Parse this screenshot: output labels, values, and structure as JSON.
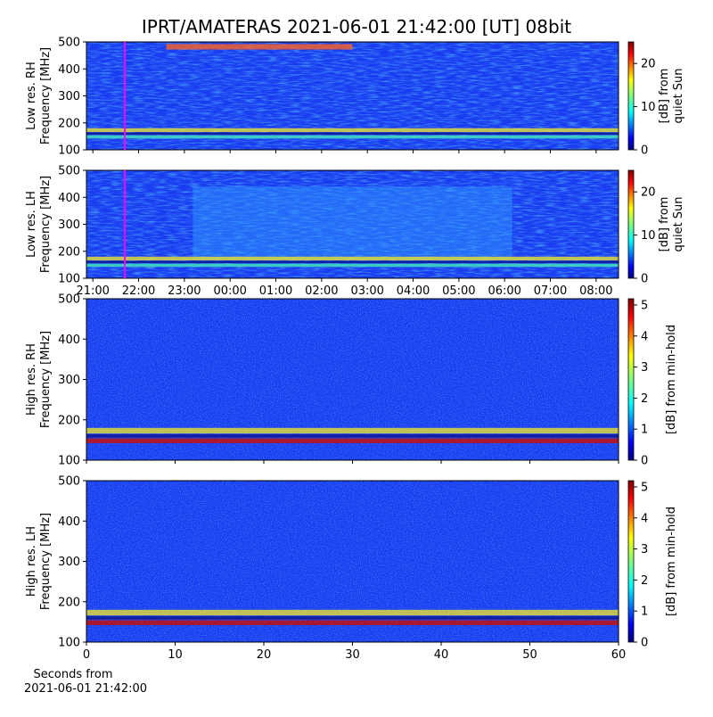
{
  "title": "IPRT/AMATERAS 2021-06-01 21:42:00 [UT]   08bit",
  "chart_data": [
    {
      "type": "heatmap",
      "ylabel": [
        "Low res. RH",
        "Frequency [MHz]"
      ],
      "ylim": [
        100,
        500
      ],
      "yticks": [
        100,
        200,
        300,
        400,
        500
      ],
      "sharex": 1,
      "marker_x": 21.7,
      "marker_color": "#ff00ff",
      "colormap": "jet",
      "colorbar": {
        "label": [
          "[dB] from",
          "quiet Sun"
        ],
        "lim": [
          0,
          25
        ],
        "ticks": [
          0,
          10,
          20
        ]
      }
    },
    {
      "type": "heatmap",
      "ylabel": [
        "Low res. LH",
        "Frequency [MHz]"
      ],
      "ylim": [
        100,
        500
      ],
      "yticks": [
        100,
        200,
        300,
        400,
        500
      ],
      "xlim": [
        20.86,
        32.49
      ],
      "xticks": [
        {
          "value": 21,
          "label": "21:00"
        },
        {
          "value": 22,
          "label": "22:00"
        },
        {
          "value": 23,
          "label": "23:00"
        },
        {
          "value": 24,
          "label": "00:00"
        },
        {
          "value": 25,
          "label": "01:00"
        },
        {
          "value": 26,
          "label": "02:00"
        },
        {
          "value": 27,
          "label": "03:00"
        },
        {
          "value": 28,
          "label": "04:00"
        },
        {
          "value": 29,
          "label": "05:00"
        },
        {
          "value": 30,
          "label": "06:00"
        },
        {
          "value": 31,
          "label": "07:00"
        },
        {
          "value": 32,
          "label": "08:00"
        }
      ],
      "marker_x": 21.7,
      "marker_color": "#ff00ff",
      "colormap": "jet",
      "colorbar": {
        "label": [
          "[dB] from",
          "quiet Sun"
        ],
        "lim": [
          0,
          25
        ],
        "ticks": [
          0,
          10,
          20
        ]
      }
    },
    {
      "type": "heatmap",
      "ylabel": [
        "High res. RH",
        "Frequency [MHz]"
      ],
      "ylim": [
        100,
        500
      ],
      "yticks": [
        100,
        200,
        300,
        400,
        500
      ],
      "sharex": 3,
      "colormap": "jet",
      "colorbar": {
        "label": [
          "[dB] from min-hold"
        ],
        "lim": [
          0,
          5.2
        ],
        "ticks": [
          0,
          1,
          2,
          3,
          4,
          5
        ]
      }
    },
    {
      "type": "heatmap",
      "ylabel": [
        "High res. LH",
        "Frequency [MHz]"
      ],
      "ylim": [
        100,
        500
      ],
      "yticks": [
        100,
        200,
        300,
        400,
        500
      ],
      "xlim": [
        0,
        60
      ],
      "xticks": [
        0,
        10,
        20,
        30,
        40,
        50,
        60
      ],
      "xlabel": [
        "Seconds from",
        "2021-06-01 21:42:00"
      ],
      "colormap": "jet",
      "colorbar": {
        "label": [
          "[dB] from min-hold"
        ],
        "lim": [
          0,
          5.2
        ],
        "ticks": [
          0,
          1,
          2,
          3,
          4,
          5
        ]
      }
    }
  ]
}
